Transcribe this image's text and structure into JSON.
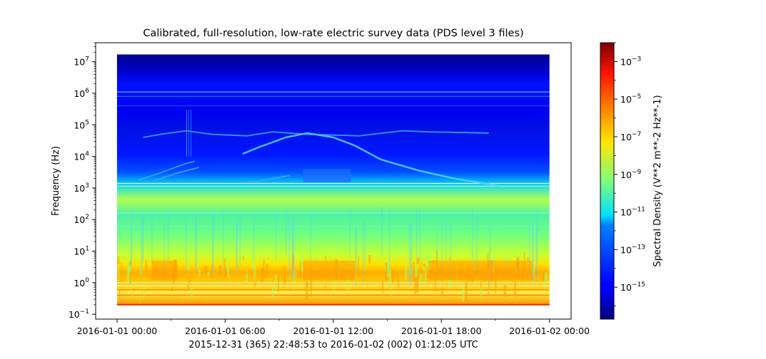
{
  "chart_data": {
    "type": "heatmap",
    "title": "Calibrated, full-resolution, low-rate electric survey data (PDS level 3 files)",
    "xlabel": "2015-12-31 (365) 22:48:53 to 2016-01-02 (002) 01:12:05 UTC",
    "ylabel": "Frequency (Hz)",
    "x_range": [
      "2015-12-31 22:48:53",
      "2016-01-02 01:12:05"
    ],
    "x_ticks": [
      "2016-01-01 00:00",
      "2016-01-01 06:00",
      "2016-01-01 12:00",
      "2016-01-01 18:00",
      "2016-01-02 00:00"
    ],
    "y_scale": "log",
    "y_range": [
      0.07,
      40000000
    ],
    "y_ticks": [
      {
        "base": "10",
        "exp": "7"
      },
      {
        "base": "10",
        "exp": "6"
      },
      {
        "base": "10",
        "exp": "5"
      },
      {
        "base": "10",
        "exp": "4"
      },
      {
        "base": "10",
        "exp": "3"
      },
      {
        "base": "10",
        "exp": "2"
      },
      {
        "base": "10",
        "exp": "1"
      },
      {
        "base": "10",
        "exp": "0"
      },
      {
        "base": "10",
        "exp": "−1"
      }
    ],
    "data_extent": {
      "time_start": "2016-01-01 00:00",
      "time_end": "2016-01-02 00:00",
      "freq_min": 0.2,
      "freq_max": 17000000
    },
    "colorbar": {
      "label": "Spectral Density (V**2 m**-2 Hz**-1)",
      "scale": "log",
      "range": [
        2e-17,
        0.01
      ],
      "colormap": "jet",
      "ticks": [
        {
          "base": "10",
          "exp": "−3"
        },
        {
          "base": "10",
          "exp": "−5"
        },
        {
          "base": "10",
          "exp": "−7"
        },
        {
          "base": "10",
          "exp": "−9"
        },
        {
          "base": "10",
          "exp": "−11"
        },
        {
          "base": "10",
          "exp": "−13"
        },
        {
          "base": "10",
          "exp": "−15"
        }
      ]
    },
    "grid": false,
    "legend": "none"
  }
}
